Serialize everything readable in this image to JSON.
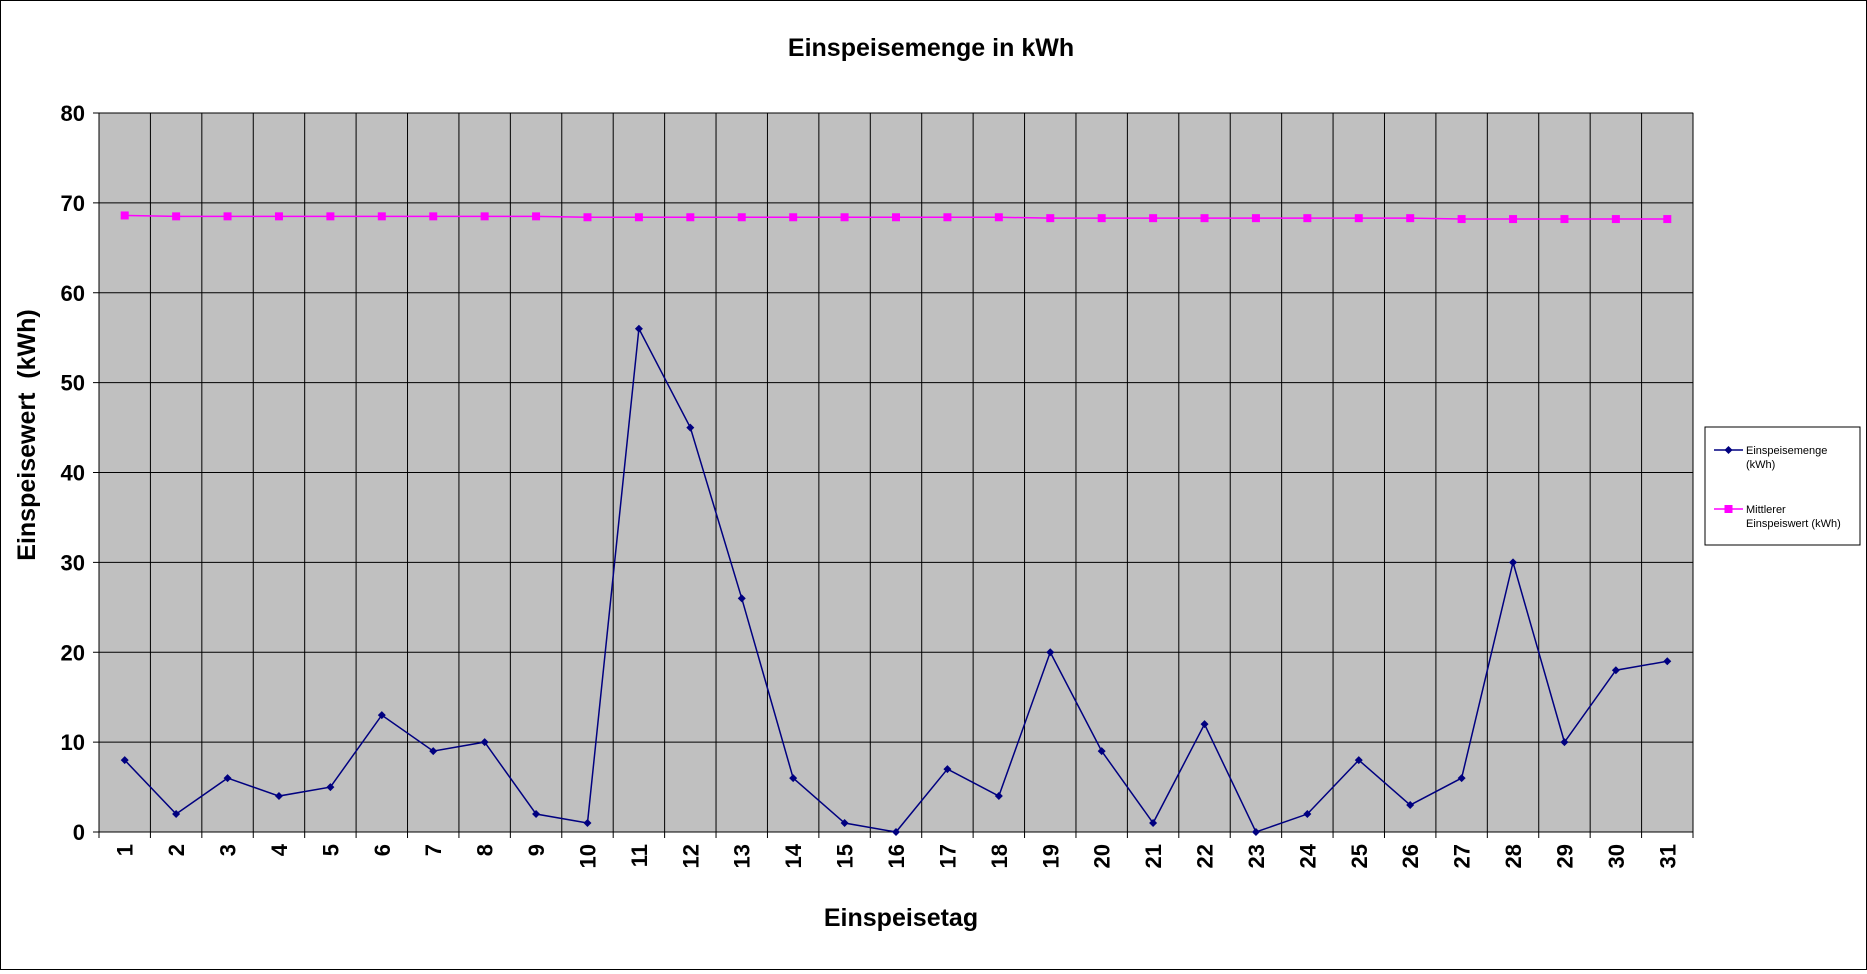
{
  "chart_data": {
    "type": "line",
    "title": "Einspeisemenge in kWh",
    "xlabel": "Einspeisetag",
    "ylabel": "Einspeisewert  (kWh)",
    "ylim": [
      0,
      80
    ],
    "yticks": [
      0,
      10,
      20,
      30,
      40,
      50,
      60,
      70,
      80
    ],
    "grid": true,
    "legend_position": "right",
    "plot_background": "#C0C0C0",
    "categories": [
      "1",
      "2",
      "3",
      "4",
      "5",
      "6",
      "7",
      "8",
      "9",
      "10",
      "11",
      "12",
      "13",
      "14",
      "15",
      "16",
      "17",
      "18",
      "19",
      "20",
      "21",
      "22",
      "23",
      "24",
      "25",
      "26",
      "27",
      "28",
      "29",
      "30",
      "31"
    ],
    "series": [
      {
        "name": "Einspeisemenge (kWh)",
        "legend_lines": [
          "Einspeisemenge",
          "(kWh)"
        ],
        "color": "#000080",
        "marker": "diamond",
        "values": [
          8,
          2,
          6,
          4,
          5,
          13,
          9,
          10,
          2,
          1,
          56,
          45,
          26,
          6,
          1,
          0,
          7,
          4,
          20,
          9,
          1,
          12,
          0,
          2,
          8,
          3,
          6,
          30,
          10,
          18,
          19
        ]
      },
      {
        "name": "Mittlerer Einspeiswert (kWh)",
        "legend_lines": [
          "Mittlerer",
          "Einspeiswert (kWh)"
        ],
        "color": "#FF00FF",
        "marker": "square",
        "values": [
          68.6,
          68.5,
          68.5,
          68.5,
          68.5,
          68.5,
          68.5,
          68.5,
          68.5,
          68.4,
          68.4,
          68.4,
          68.4,
          68.4,
          68.4,
          68.4,
          68.4,
          68.4,
          68.3,
          68.3,
          68.3,
          68.3,
          68.3,
          68.3,
          68.3,
          68.3,
          68.2,
          68.2,
          68.2,
          68.2,
          68.2
        ]
      }
    ]
  }
}
